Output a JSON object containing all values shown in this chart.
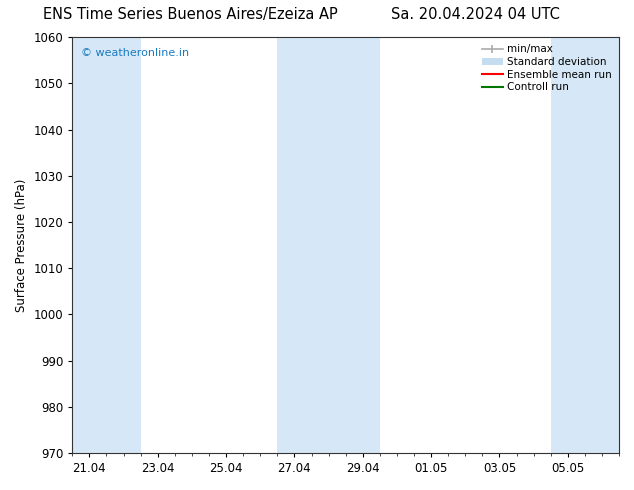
{
  "title_left": "ENS Time Series Buenos Aires/Ezeiza AP",
  "title_right": "Sa. 20.04.2024 04 UTC",
  "ylabel": "Surface Pressure (hPa)",
  "ylim": [
    970,
    1060
  ],
  "yticks": [
    970,
    980,
    990,
    1000,
    1010,
    1020,
    1030,
    1040,
    1050,
    1060
  ],
  "xtick_labels": [
    "21.04",
    "23.04",
    "25.04",
    "27.04",
    "29.04",
    "01.05",
    "03.05",
    "05.05"
  ],
  "xtick_positions": [
    0,
    2,
    4,
    6,
    8,
    10,
    12,
    14
  ],
  "xlim": [
    -0.5,
    15.5
  ],
  "watermark": "© weatheronline.in",
  "watermark_color": "#1a7abf",
  "bg_color": "#ffffff",
  "plot_bg_color": "#ffffff",
  "shaded_band_color": "#d6e8f7",
  "shaded_columns": [
    {
      "x_start": -0.5,
      "x_end": 1.5
    },
    {
      "x_start": 5.5,
      "x_end": 8.5
    },
    {
      "x_start": 13.5,
      "x_end": 15.5
    }
  ],
  "legend_items": [
    {
      "label": "min/max",
      "color": "#aaaaaa",
      "lw": 1.2
    },
    {
      "label": "Standard deviation",
      "color": "#c5ddf0",
      "lw": 7
    },
    {
      "label": "Ensemble mean run",
      "color": "#ff0000",
      "lw": 1.5
    },
    {
      "label": "Controll run",
      "color": "#007700",
      "lw": 1.5
    }
  ],
  "title_fontsize": 10.5,
  "tick_fontsize": 8.5,
  "ylabel_fontsize": 8.5,
  "legend_fontsize": 7.5
}
